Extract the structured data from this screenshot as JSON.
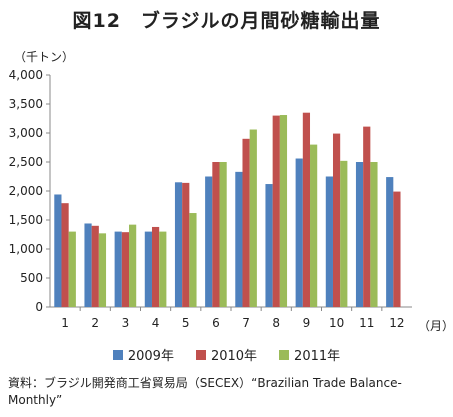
{
  "title": "図12　ブラジルの月間砂糖輸出量",
  "y_unit": "（千トン）",
  "x_unit": "（月）",
  "source": "資料：ブラジル開発商工省貿易局（SECEX）“Brazilian Trade Balance-Monthly”",
  "chart_data": {
    "type": "bar",
    "categories": [
      "1",
      "2",
      "3",
      "4",
      "5",
      "6",
      "7",
      "8",
      "9",
      "10",
      "11",
      "12"
    ],
    "series": [
      {
        "name": "2009年",
        "color": "#4f81bd",
        "values": [
          1940,
          1440,
          1300,
          1300,
          2150,
          2250,
          2330,
          2120,
          2560,
          2250,
          2500,
          2240
        ]
      },
      {
        "name": "2010年",
        "color": "#c0504d",
        "values": [
          1790,
          1400,
          1290,
          1380,
          2140,
          2500,
          2900,
          3300,
          3350,
          2990,
          3110,
          1990
        ]
      },
      {
        "name": "2011年",
        "color": "#9bbb59",
        "values": [
          1300,
          1270,
          1420,
          1300,
          1620,
          2500,
          3060,
          3310,
          2800,
          2520,
          2500,
          null
        ]
      }
    ],
    "yticks": [
      "0",
      "500",
      "1,000",
      "1,500",
      "2,000",
      "2,500",
      "3,000",
      "3,500",
      "4,000"
    ],
    "ylim": [
      0,
      4000
    ],
    "xlabel": "（月）",
    "ylabel": "（千トン）",
    "legend_position": "bottom",
    "grid": false
  }
}
